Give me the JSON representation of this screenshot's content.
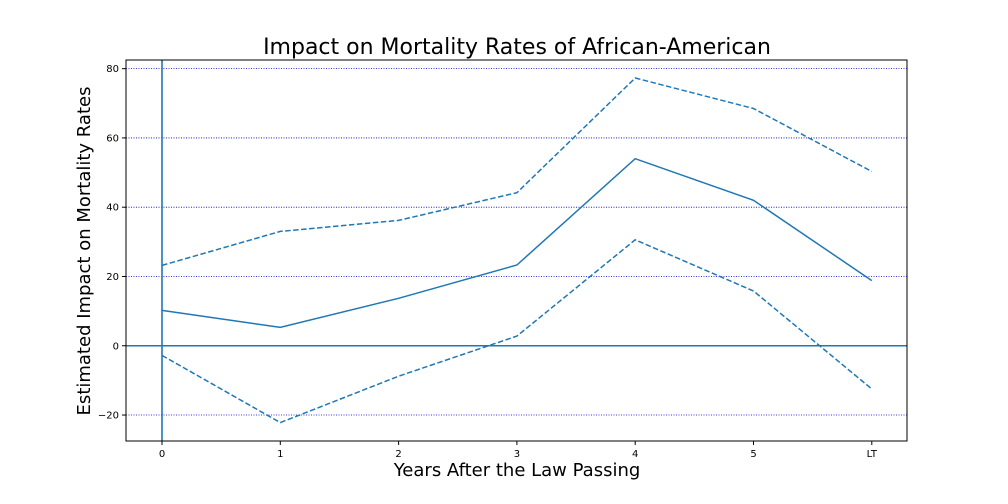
{
  "chart_data": {
    "type": "line",
    "title": "Impact on Mortality Rates of African-American",
    "xlabel": "Years After the Law Passing",
    "ylabel": "Estimated Impact on Mortality Rates",
    "categories": [
      "0",
      "1",
      "2",
      "3",
      "4",
      "5",
      "LT"
    ],
    "ylim": [
      -27.5,
      82.5
    ],
    "yticks": [
      -20,
      0,
      20,
      40,
      60,
      80
    ],
    "grid": "horizontal-dotted",
    "reference_lines": {
      "horizontal": 0,
      "vertical": "0"
    },
    "colors": {
      "line": "#1f77b4",
      "grid": "#0000cc",
      "axis": "#000000"
    },
    "series": [
      {
        "role": "estimate",
        "style": "solid",
        "values": [
          10.2,
          5.3,
          13.7,
          23.3,
          54.0,
          42.0,
          18.8
        ]
      },
      {
        "role": "upper-ci",
        "style": "dashed",
        "values": [
          23.2,
          33.0,
          36.2,
          44.2,
          77.3,
          68.5,
          50.3
        ]
      },
      {
        "role": "lower-ci",
        "style": "dashed",
        "values": [
          -2.8,
          -22.2,
          -8.8,
          2.8,
          30.6,
          15.8,
          -12.5
        ]
      }
    ]
  }
}
